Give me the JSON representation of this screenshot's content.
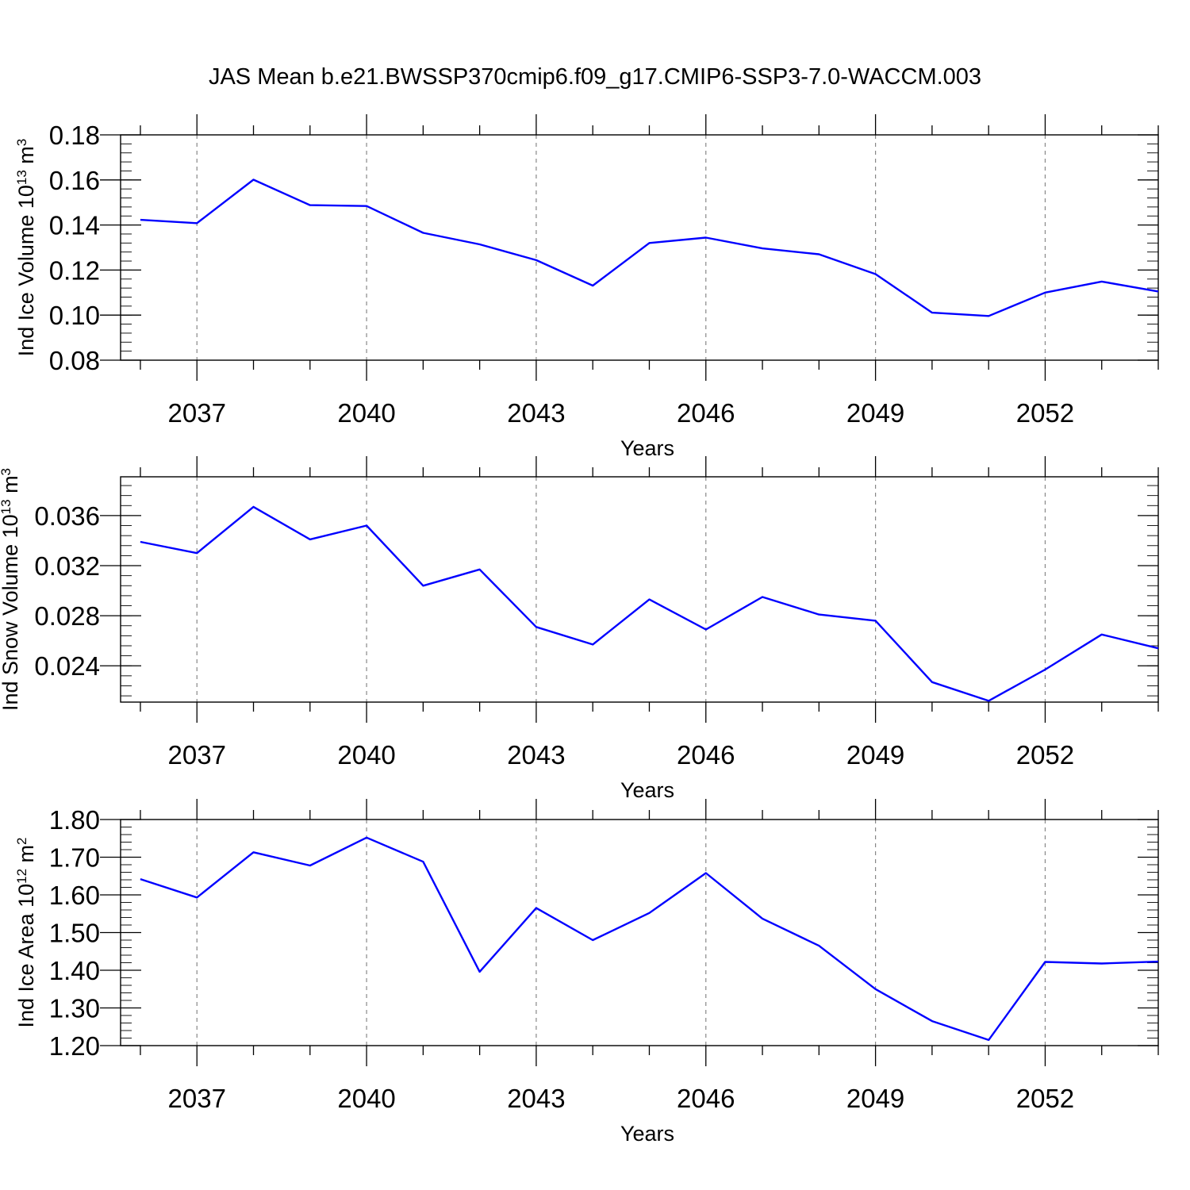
{
  "figure": {
    "title": "JAS Mean b.e21.BWSSP370cmip6.f09_g17.CMIP6-SSP3-7.0-WACCM.003"
  },
  "colors": {
    "line": "#0000ff",
    "axis": "#000000",
    "grid": "#888888"
  },
  "chart_data": [
    {
      "type": "line",
      "ylabel": {
        "main": "Ind Ice Volume 10",
        "exp": "13",
        "unit": " m",
        "unit_exp": "3"
      },
      "xlabel": "Years",
      "x": [
        2036,
        2037,
        2038,
        2039,
        2040,
        2041,
        2042,
        2043,
        2044,
        2045,
        2046,
        2047,
        2048,
        2049,
        2050,
        2051,
        2052,
        2053,
        2054
      ],
      "series": [
        {
          "values": [
            0.1423,
            0.1408,
            0.1601,
            0.1488,
            0.1484,
            0.1365,
            0.1314,
            0.1244,
            0.1131,
            0.132,
            0.1344,
            0.1296,
            0.127,
            0.1182,
            0.1011,
            0.0996,
            0.11,
            0.1149,
            0.1105
          ]
        }
      ],
      "xlim": [
        2035.65,
        2054.0
      ],
      "ylim": [
        0.08,
        0.18
      ],
      "xticks": [
        2037,
        2040,
        2043,
        2046,
        2049,
        2052
      ],
      "yticks": [
        0.08,
        0.1,
        0.12,
        0.14,
        0.16,
        0.18
      ],
      "ytick_labels": [
        "0.08",
        "0.10",
        "0.12",
        "0.14",
        "0.16",
        "0.18"
      ],
      "grid": "vertical dashed at major x ticks"
    },
    {
      "type": "line",
      "ylabel": {
        "main": "Ind Snow Volume 10",
        "exp": "13",
        "unit": " m",
        "unit_exp": "3"
      },
      "xlabel": "Years",
      "x": [
        2036,
        2037,
        2038,
        2039,
        2040,
        2041,
        2042,
        2043,
        2044,
        2045,
        2046,
        2047,
        2048,
        2049,
        2050,
        2051,
        2052,
        2053,
        2054
      ],
      "series": [
        {
          "values": [
            0.0339,
            0.033,
            0.0367,
            0.0341,
            0.0352,
            0.0304,
            0.0317,
            0.0271,
            0.0257,
            0.0293,
            0.0269,
            0.0295,
            0.0281,
            0.0276,
            0.0227,
            0.0212,
            0.0237,
            0.0265,
            0.0254
          ]
        }
      ],
      "xlim": [
        2035.65,
        2054.0
      ],
      "ylim": [
        0.0211,
        0.0391
      ],
      "xticks": [
        2037,
        2040,
        2043,
        2046,
        2049,
        2052
      ],
      "yticks": [
        0.024,
        0.028,
        0.032,
        0.036
      ],
      "ytick_labels": [
        "0.024",
        "0.028",
        "0.032",
        "0.036"
      ],
      "grid": "vertical dashed at major x ticks"
    },
    {
      "type": "line",
      "ylabel": {
        "main": "Ind Ice Area 10",
        "exp": "12",
        "unit": " m",
        "unit_exp": "2"
      },
      "xlabel": "Years",
      "x": [
        2036,
        2037,
        2038,
        2039,
        2040,
        2041,
        2042,
        2043,
        2044,
        2045,
        2046,
        2047,
        2048,
        2049,
        2050,
        2051,
        2052,
        2053,
        2054
      ],
      "series": [
        {
          "values": [
            1.642,
            1.593,
            1.713,
            1.678,
            1.752,
            1.688,
            1.396,
            1.565,
            1.48,
            1.552,
            1.658,
            1.537,
            1.465,
            1.35,
            1.265,
            1.215,
            1.422,
            1.418,
            1.423
          ]
        }
      ],
      "xlim": [
        2035.65,
        2054.0
      ],
      "ylim": [
        1.2,
        1.8
      ],
      "xticks": [
        2037,
        2040,
        2043,
        2046,
        2049,
        2052
      ],
      "yticks": [
        1.2,
        1.3,
        1.4,
        1.5,
        1.6,
        1.7,
        1.8
      ],
      "ytick_labels": [
        "1.20",
        "1.30",
        "1.40",
        "1.50",
        "1.60",
        "1.70",
        "1.80"
      ],
      "grid": "vertical dashed at major x ticks"
    }
  ]
}
